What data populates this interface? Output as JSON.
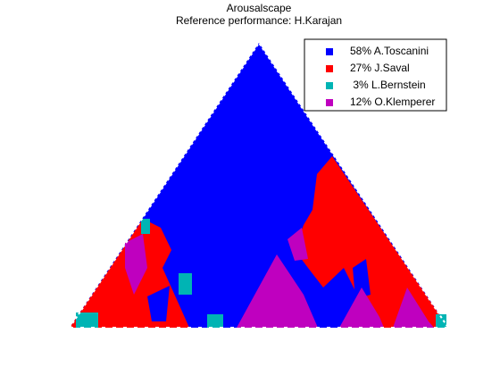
{
  "chart_data": {
    "type": "triangle-map",
    "title": "Arousalscape",
    "subtitle": "Reference performance: H.Karajan",
    "series": [
      {
        "name": "58% A.Toscanini",
        "color": "#0000ff"
      },
      {
        "name": "27% J.Saval",
        "color": "#ff0000"
      },
      {
        "name": " 3% L.Bernstein",
        "color": "#00b4b4"
      },
      {
        "name": "12% O.Klemperer",
        "color": "#bf00bf"
      }
    ]
  }
}
